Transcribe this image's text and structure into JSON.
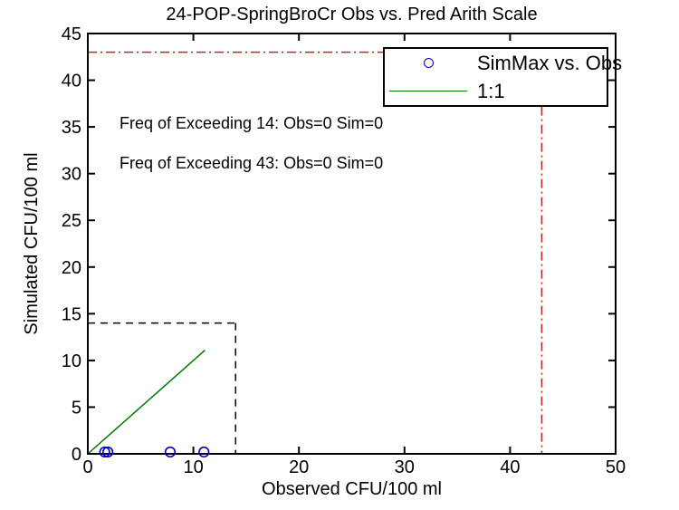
{
  "figure_title": "24-POP-SpringBroCr Obs vs. Pred Arith Scale",
  "colors": {
    "marker_blue": "#0000bb",
    "line_green": "#007a00",
    "threshold_red": "#cc2222",
    "threshold_black": "#000000",
    "axis_black": "#000000",
    "background": "#ffffff"
  },
  "chart_data": {
    "type": "scatter",
    "title": "24-POP-SpringBroCr Obs vs. Pred Arith Scale",
    "xlabel": "Observed CFU/100 ml",
    "ylabel": "Simulated CFU/100 ml",
    "xlim": [
      0,
      50
    ],
    "ylim": [
      0,
      45
    ],
    "xticks": [
      0,
      10,
      20,
      30,
      40,
      50
    ],
    "yticks": [
      0,
      5,
      10,
      15,
      20,
      25,
      30,
      35,
      40,
      45
    ],
    "grid": false,
    "series": [
      {
        "name": "SimMax vs. Obs",
        "type": "scatter",
        "marker": "circle",
        "color": "#0000bb",
        "points": [
          {
            "x": 1.6,
            "y": 0.2
          },
          {
            "x": 1.9,
            "y": 0.2
          },
          {
            "x": 7.8,
            "y": 0.2
          },
          {
            "x": 11.0,
            "y": 0.2
          }
        ]
      },
      {
        "name": "1:1",
        "type": "line",
        "color": "#007a00",
        "x": [
          0,
          11.1
        ],
        "y": [
          0,
          11.1
        ]
      }
    ],
    "reference_lines": [
      {
        "name": "threshold-43",
        "value": 43,
        "color": "#cc2222",
        "dash": "dashdot",
        "segments": [
          {
            "x1": 0,
            "y1": 43,
            "x2": 43,
            "y2": 43
          },
          {
            "x1": 43,
            "y1": 43,
            "x2": 43,
            "y2": 0
          }
        ]
      },
      {
        "name": "threshold-14",
        "value": 14,
        "color": "#000000",
        "dash": "dashed",
        "segments": [
          {
            "x1": 0,
            "y1": 14,
            "x2": 14,
            "y2": 14
          },
          {
            "x1": 14,
            "y1": 14,
            "x2": 14,
            "y2": 0
          }
        ]
      }
    ],
    "annotations": [
      {
        "text": "Freq of Exceeding 14: Obs=0 Sim=0",
        "x": 3,
        "y": 35.5
      },
      {
        "text": "Freq of Exceeding 43: Obs=0 Sim=0",
        "x": 3,
        "y": 31.2
      }
    ],
    "legend": {
      "position": "top-right",
      "entries": [
        {
          "label": "SimMax vs. Obs",
          "marker": "circle",
          "color": "#0000bb"
        },
        {
          "label": "1:1",
          "marker": "line",
          "color": "#007a00"
        }
      ]
    }
  }
}
